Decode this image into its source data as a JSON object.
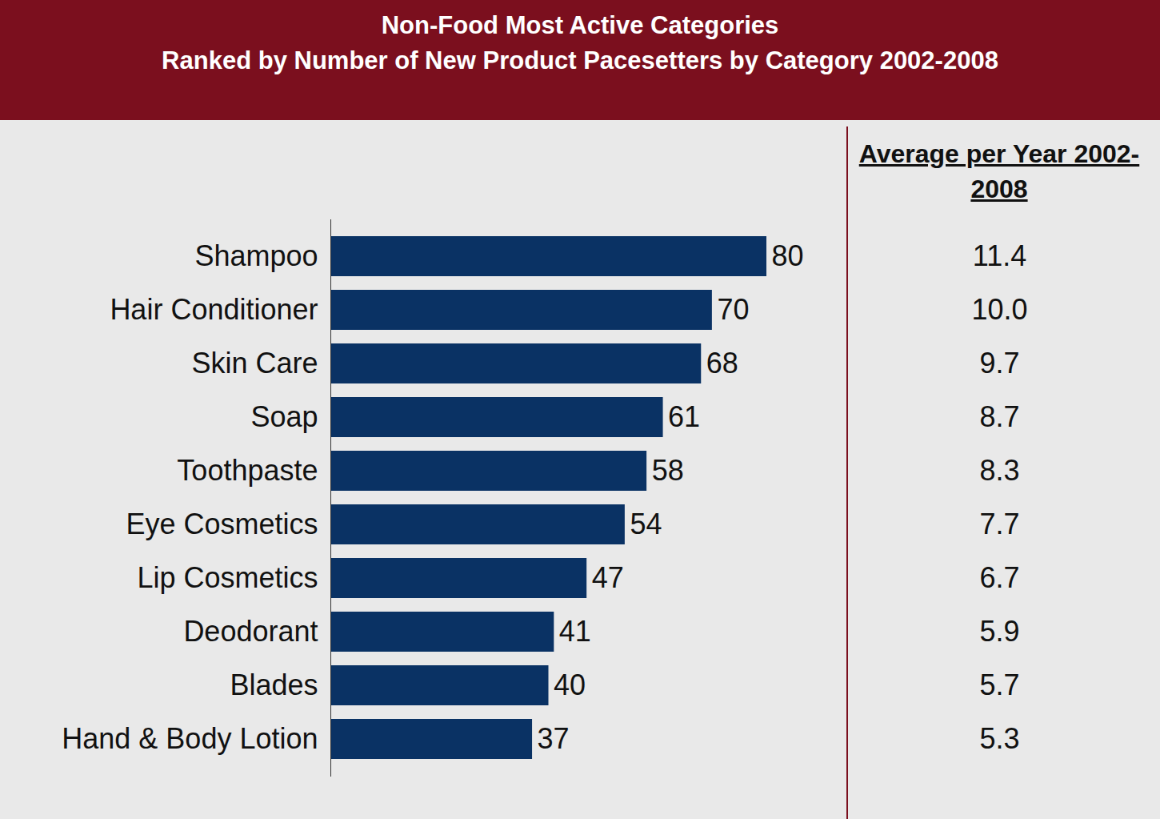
{
  "chart_data": {
    "type": "bar",
    "orientation": "horizontal",
    "title": "Non-Food Most Active Categories",
    "subtitle": "Ranked by Number of New Product Pacesetters by Category 2002-2008",
    "categories": [
      "Shampoo",
      "Hair Conditioner",
      "Skin Care",
      "Soap",
      "Toothpaste",
      "Eye Cosmetics",
      "Lip Cosmetics",
      "Deodorant",
      "Blades",
      "Hand & Body Lotion"
    ],
    "values": [
      80,
      70,
      68,
      61,
      58,
      54,
      47,
      41,
      40,
      37
    ],
    "color": "#0a3264",
    "xlim": [
      0,
      80
    ],
    "tick_labels": "y",
    "data_labels": true,
    "grid": false,
    "average_per_year": {
      "title": "Average per Year 2002-2008",
      "values": [
        11.4,
        10.0,
        9.7,
        8.7,
        8.3,
        7.7,
        6.7,
        5.9,
        5.7,
        5.3
      ],
      "value_labels": [
        "11.4",
        "10.0",
        "9.7",
        "8.7",
        "8.3",
        "7.7",
        "6.7",
        "5.9",
        "5.7",
        "5.3"
      ]
    }
  }
}
